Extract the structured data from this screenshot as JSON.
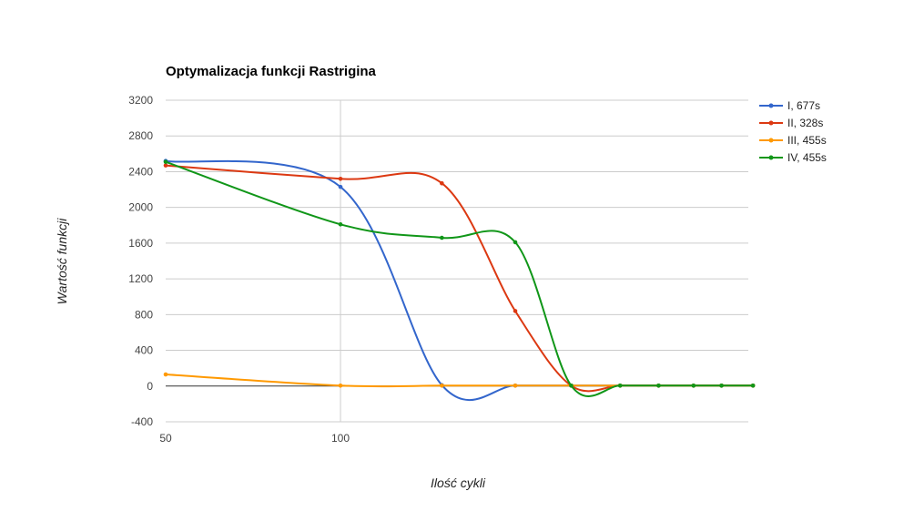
{
  "chart_data": {
    "type": "line",
    "title": "Optymalizacja funkcji Rastrigina",
    "xlabel": "Ilość cykli",
    "ylabel": "Wartość funkcji",
    "ylim": [
      -400,
      3200
    ],
    "yticks": [
      -400,
      0,
      400,
      800,
      1200,
      1600,
      2000,
      2400,
      2800,
      3200
    ],
    "xlim": [
      50,
      218
    ],
    "xticks": [
      50,
      100
    ],
    "legend_position": "right",
    "grid": true,
    "series": [
      {
        "name": "I, 677s",
        "color": "#3366cc",
        "points": [
          [
            50,
            2520
          ],
          [
            100,
            2230
          ],
          [
            129,
            10
          ],
          [
            150,
            5
          ],
          [
            166,
            5
          ],
          [
            180,
            5
          ],
          [
            191,
            5
          ],
          [
            201,
            5
          ],
          [
            209,
            5
          ],
          [
            218,
            5
          ]
        ]
      },
      {
        "name": "II, 328s",
        "color": "#dc3912",
        "points": [
          [
            50,
            2470
          ],
          [
            100,
            2320
          ],
          [
            129,
            2270
          ],
          [
            150,
            840
          ],
          [
            166,
            5
          ],
          [
            180,
            5
          ],
          [
            191,
            5
          ],
          [
            201,
            5
          ],
          [
            209,
            5
          ],
          [
            218,
            5
          ]
        ]
      },
      {
        "name": "III, 455s",
        "color": "#ff9900",
        "points": [
          [
            50,
            130
          ],
          [
            100,
            5
          ],
          [
            129,
            5
          ],
          [
            150,
            5
          ],
          [
            166,
            5
          ],
          [
            180,
            5
          ],
          [
            191,
            5
          ],
          [
            201,
            5
          ],
          [
            209,
            5
          ],
          [
            218,
            5
          ]
        ]
      },
      {
        "name": "IV, 455s",
        "color": "#109618",
        "points": [
          [
            50,
            2510
          ],
          [
            100,
            1810
          ],
          [
            129,
            1660
          ],
          [
            150,
            1610
          ],
          [
            166,
            5
          ],
          [
            180,
            5
          ],
          [
            191,
            5
          ],
          [
            201,
            5
          ],
          [
            209,
            5
          ],
          [
            218,
            5
          ]
        ]
      }
    ]
  }
}
